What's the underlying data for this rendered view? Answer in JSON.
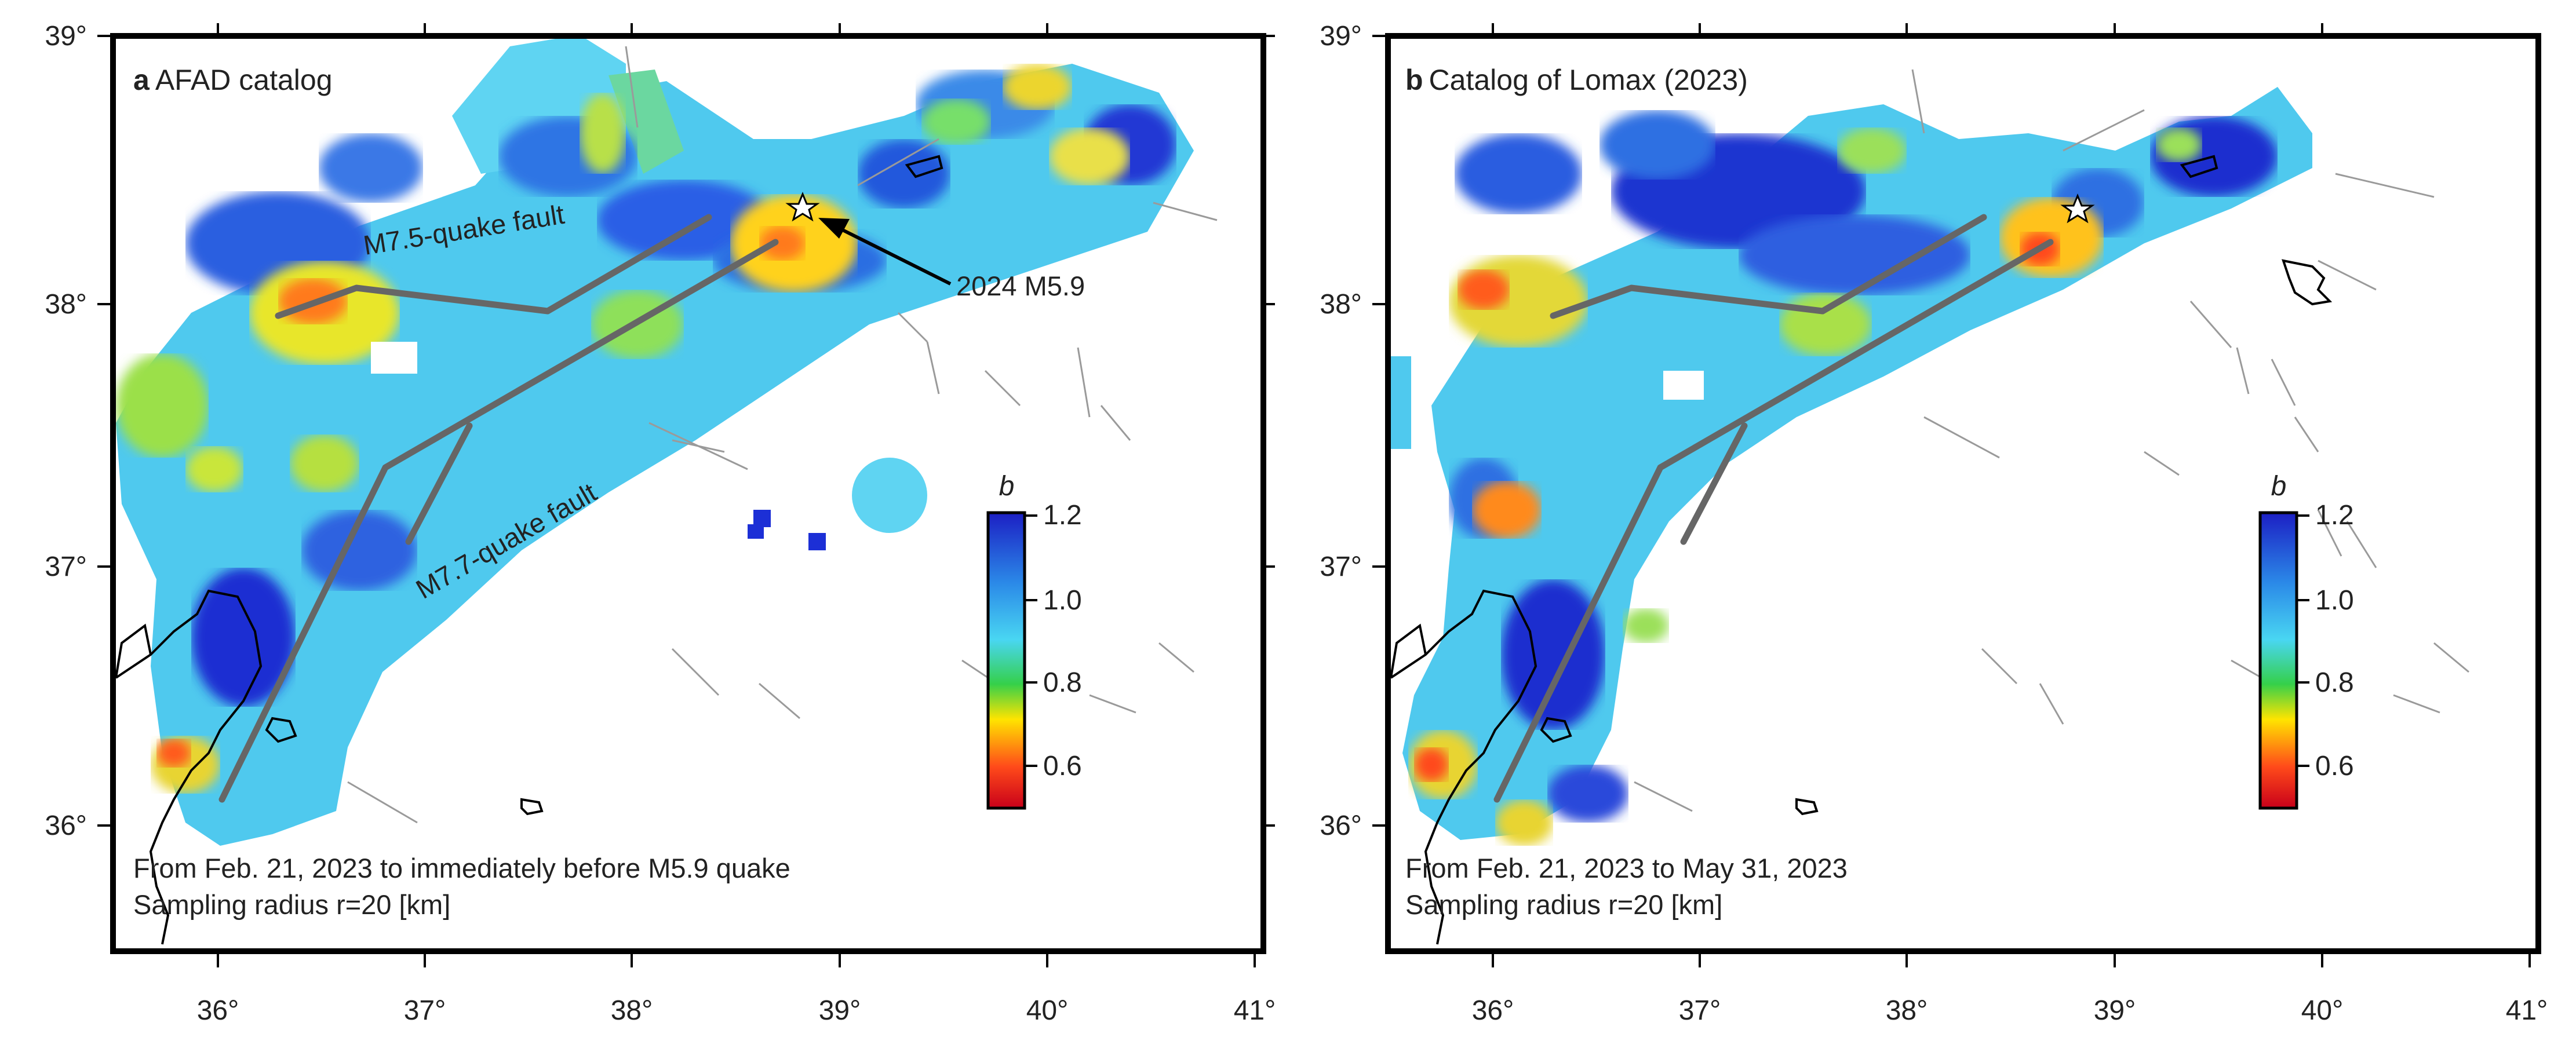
{
  "axes": {
    "x_ticks": [
      "36°",
      "37°",
      "38°",
      "39°",
      "40°",
      "41°"
    ],
    "y_ticks": [
      "39°",
      "38°",
      "37°",
      "36°"
    ],
    "lon_range": [
      35.5,
      41.0
    ],
    "lat_range": [
      35.5,
      39.0
    ]
  },
  "colorbar": {
    "label": "b",
    "ticks": [
      "1.2",
      "1.0",
      "0.8",
      "0.6"
    ],
    "range": [
      0.5,
      1.2
    ],
    "colormap": "blue (high b) – cyan – green – yellow – red (low b)"
  },
  "colors": {
    "fault_trace": "#666666",
    "frame": "#000000",
    "high_b": "#1e2fd6",
    "mid_b": "#4fc9ee",
    "low_b": "#e4281b"
  },
  "panels": [
    {
      "letter": "a",
      "title": "AFAD catalog",
      "fault_label_m75": "M7.5-quake fault",
      "fault_label_m77": "M7.7-quake fault",
      "event_label": "2024 M5.9",
      "period": "From Feb. 21, 2023 to immediately before M5.9 quake",
      "radius": "Sampling radius r=20 [km]"
    },
    {
      "letter": "b",
      "title": "Catalog of Lomax (2023)",
      "period": "From Feb. 21, 2023 to May 31, 2023",
      "radius": "Sampling radius r=20 [km]"
    }
  ]
}
